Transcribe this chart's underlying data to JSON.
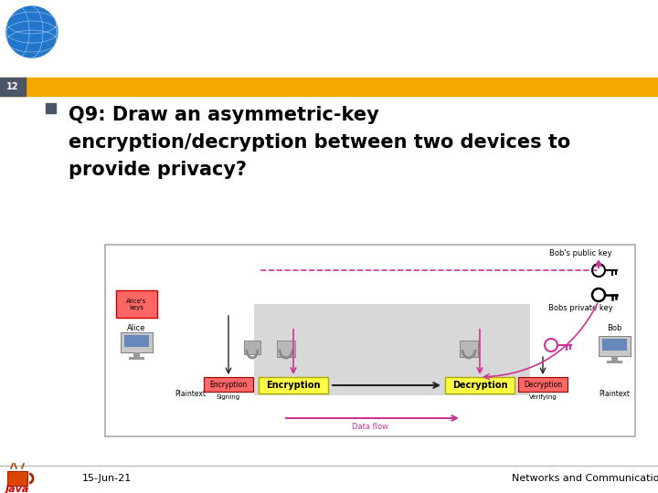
{
  "title_line1": "Q9: Draw an asymmetric-key",
  "title_line2": "encryption/decryption between two devices to",
  "title_line3": "provide privacy?",
  "slide_number": "12",
  "date_text": "15-Jun-21",
  "footer_text": "Networks and Communication Department",
  "header_bar_color": "#F5A800",
  "header_num_bg": "#4a5568",
  "bg_color": "#FFFFFF",
  "bullet_color": "#4a5568",
  "java_color": "#CC0000",
  "arrow_pink": "#CC3399",
  "arrow_black": "#222222",
  "enc_small_color": "#FF6666",
  "enc_big_color": "#FFFF44",
  "alice_box_color": "#FF6666",
  "gray_region": "#d8d8d8",
  "diagram_border": "#aaaaaa"
}
